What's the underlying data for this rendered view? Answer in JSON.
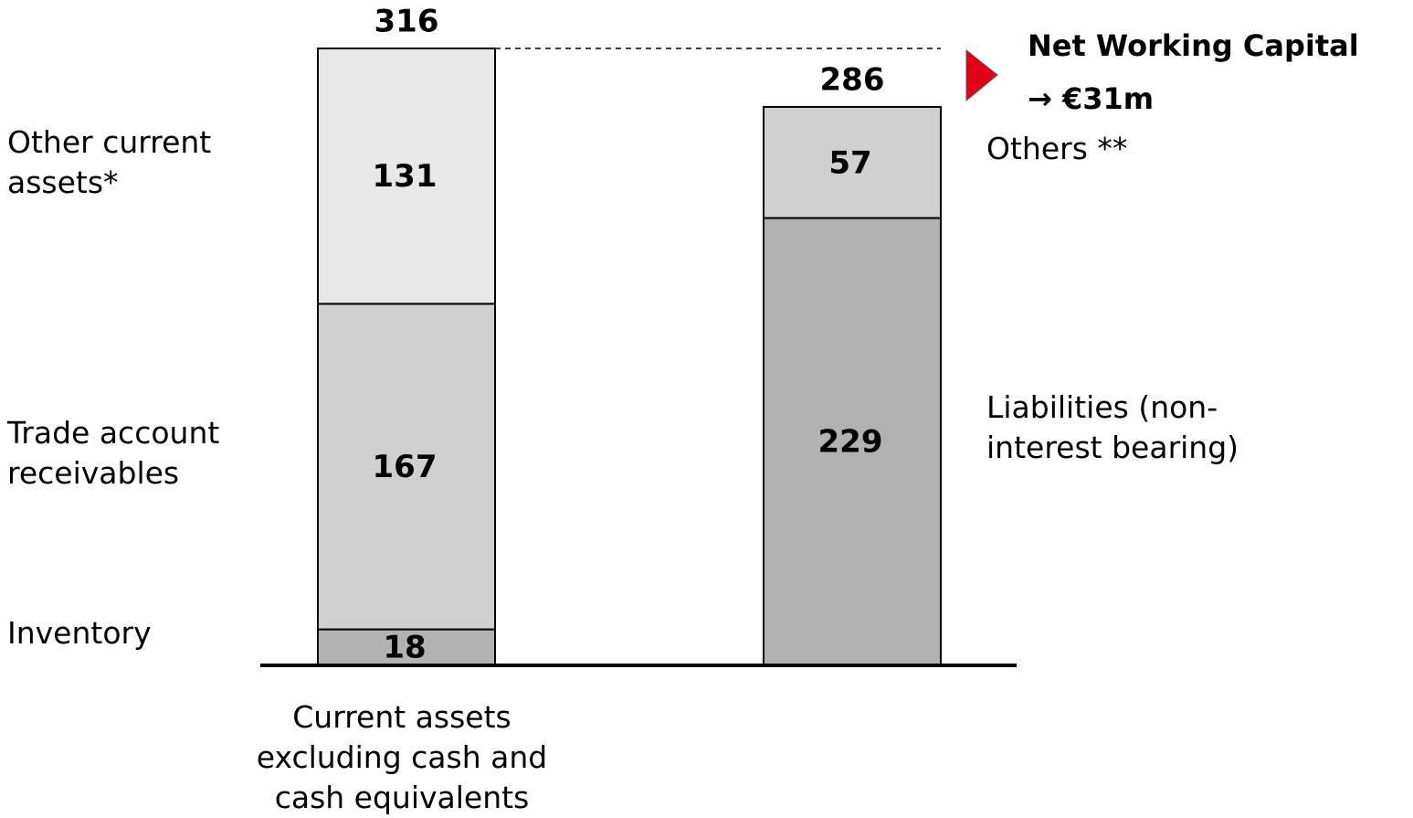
{
  "chart_data": {
    "type": "stacked-bar",
    "categories": [
      "Current assets excluding cash and cash equivalents",
      null
    ],
    "series": [
      {
        "name": "Inventory",
        "color": "#b2b2b2",
        "values": [
          18,
          null
        ]
      },
      {
        "name": "Trade account receivables",
        "color": "#d0d0d0",
        "values": [
          167,
          null
        ]
      },
      {
        "name": "Other current assets*",
        "color": "#e8e8e8",
        "values": [
          131,
          null
        ]
      },
      {
        "name": "Liabilities (non-interest bearing)",
        "color": "#b2b2b2",
        "values": [
          null,
          229
        ]
      },
      {
        "name": "Others **",
        "color": "#d0d0d0",
        "values": [
          null,
          57
        ]
      }
    ],
    "totals": [
      316,
      286
    ],
    "annotations": [
      "Net Working Capital",
      "→ €31m"
    ],
    "annotation_color": "#e3001b"
  }
}
